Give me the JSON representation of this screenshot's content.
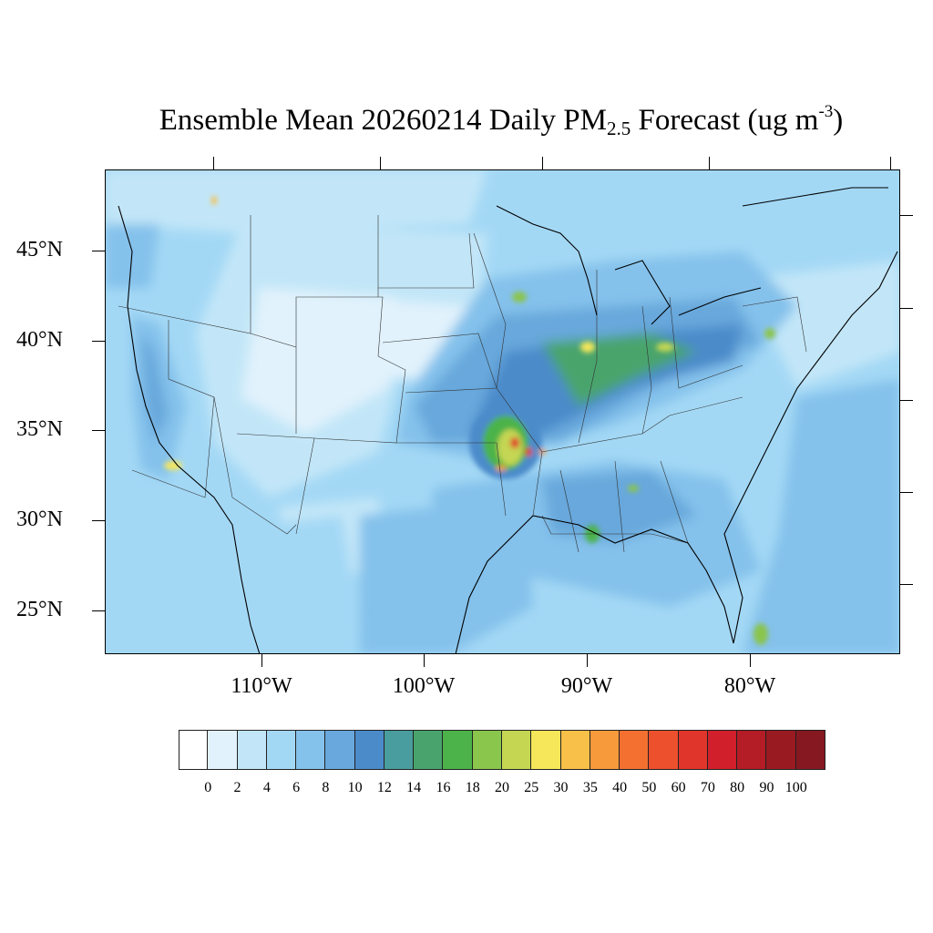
{
  "title": {
    "main": "Ensemble Mean 20260214 Daily PM",
    "sub": "2.5",
    "units_pre": " Forecast (ug m",
    "sup": "-3",
    "units_post": ")"
  },
  "lat_labels": [
    "45°N",
    "40°N",
    "35°N",
    "30°N",
    "25°N"
  ],
  "lon_labels": [
    "110°W",
    "100°W",
    "90°W",
    "80°W"
  ],
  "colorbar": {
    "labels": [
      "0",
      "2",
      "4",
      "6",
      "8",
      "10",
      "12",
      "14",
      "16",
      "18",
      "20",
      "25",
      "30",
      "35",
      "40",
      "50",
      "60",
      "70",
      "80",
      "90",
      "100"
    ],
    "colors": [
      "#ffffff",
      "#e1f2fc",
      "#c2e6f8",
      "#a3d8f5",
      "#84c1eb",
      "#68a8dc",
      "#4b8bca",
      "#4a9d9e",
      "#48a46c",
      "#4cb34a",
      "#8ac54c",
      "#c4d652",
      "#f5e65a",
      "#f8c048",
      "#f69a3b",
      "#f37030",
      "#ec502c",
      "#e0352a",
      "#d11f2b",
      "#b41c26",
      "#9a1a22",
      "#851821"
    ]
  }
}
